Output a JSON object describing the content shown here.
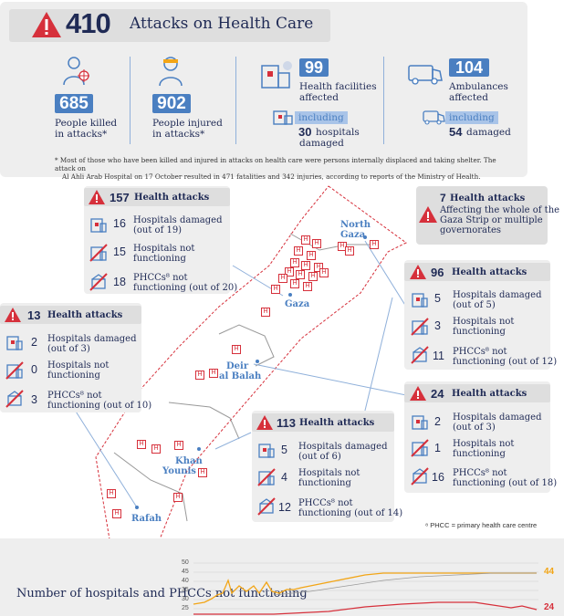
{
  "header": {
    "total": "410",
    "title": "Attacks on Health Care"
  },
  "summary": {
    "killed": {
      "value": "685",
      "label_line1": "People killed",
      "label_line2": "in attacks*"
    },
    "injured": {
      "value": "902",
      "label_line1": "People injured",
      "label_line2": "in attacks*"
    },
    "facilities": {
      "value": "99",
      "label_line1": "Health facilities",
      "label_line2": "affected",
      "including": "including",
      "sub_value": "30",
      "sub_label_line1": "hospitals",
      "sub_label_line2": "damaged"
    },
    "ambulances": {
      "value": "104",
      "label_line1": "Ambulances",
      "label_line2": "affected",
      "including": "including",
      "sub_value": "54",
      "sub_label": "damaged"
    }
  },
  "footnote": {
    "line1": "* Most of those who have been killed and injured in attacks on health care were persons internally displaced and taking shelter. The attack on",
    "line2": "Al Ahli Arab Hospital on 17 October resulted in 471 fatalities and 342 injuries, according to reports of the Ministry of Health."
  },
  "regions": {
    "gaza": {
      "attacks": "157",
      "attacks_label": "Health attacks",
      "rows": [
        {
          "value": "16",
          "line1": "Hospitals damaged",
          "line2": "(out of 19)"
        },
        {
          "value": "15",
          "line1": "Hospitals not",
          "line2": "functioning"
        },
        {
          "value": "18",
          "line1": "PHCCs⁸ not",
          "line2": "functioning (out of 20)"
        }
      ]
    },
    "whole": {
      "attacks": "7",
      "attacks_label": "Health attacks",
      "line1": "Affecting the whole of the",
      "line2": "Gaza Strip or multiple",
      "line3": "governorates"
    },
    "north": {
      "attacks": "96",
      "attacks_label": "Health attacks",
      "rows": [
        {
          "value": "5",
          "line1": "Hospitals damaged",
          "line2": "(out of 5)"
        },
        {
          "value": "3",
          "line1": "Hospitals not",
          "line2": "functioning"
        },
        {
          "value": "11",
          "line1": "PHCCs⁸ not",
          "line2": "functioning (out of 12)"
        }
      ]
    },
    "rafah": {
      "attacks": "13",
      "attacks_label": "Health attacks",
      "rows": [
        {
          "value": "2",
          "line1": "Hospitals damaged",
          "line2": "(out of 3)"
        },
        {
          "value": "0",
          "line1": "Hospitals not",
          "line2": "functioning"
        },
        {
          "value": "3",
          "line1": "PHCCs⁸ not",
          "line2": "functioning (out of 10)"
        }
      ]
    },
    "deir": {
      "attacks": "24",
      "attacks_label": "Health attacks",
      "rows": [
        {
          "value": "2",
          "line1": "Hospitals damaged",
          "line2": "(out of 3)"
        },
        {
          "value": "1",
          "line1": "Hospitals not",
          "line2": "functioning"
        },
        {
          "value": "16",
          "line1": "PHCCs⁸ not",
          "line2": "functioning (out of 18)"
        }
      ]
    },
    "khan": {
      "attacks": "113",
      "attacks_label": "Health attacks",
      "rows": [
        {
          "value": "5",
          "line1": "Hospitals damaged",
          "line2": "(out of 6)"
        },
        {
          "value": "4",
          "line1": "Hospitals not",
          "line2": "functioning"
        },
        {
          "value": "12",
          "line1": "PHCCs⁸ not",
          "line2": "functioning (out of 14)"
        }
      ]
    }
  },
  "cities": {
    "north_gaza": {
      "line1": "North",
      "line2": "Gaza"
    },
    "gaza": "Gaza",
    "deir": {
      "line1": "Deir",
      "line2": "al Balah"
    },
    "khan": {
      "line1": "Khan",
      "line2": "Younis"
    },
    "rafah": "Rafah"
  },
  "hospital_marker": "H",
  "phcc_note": "⁸ PHCC = primary health care centre",
  "chart_data": {
    "type": "line",
    "title": "Number of hospitals and PHCCs not functioning",
    "y_ticks": [
      "50",
      "45",
      "40",
      "35",
      "30",
      "25"
    ],
    "series": [
      {
        "name": "",
        "color": "#f2a516",
        "end_label": "44"
      },
      {
        "name": "",
        "color": "#d6303b",
        "end_label": "24"
      }
    ]
  },
  "colors": {
    "navy": "#1f2a55",
    "accent_blue": "#4a7fc1",
    "alert_red": "#d6303b",
    "panel_grey": "#eeeeee",
    "chart_orange": "#f2a516"
  }
}
